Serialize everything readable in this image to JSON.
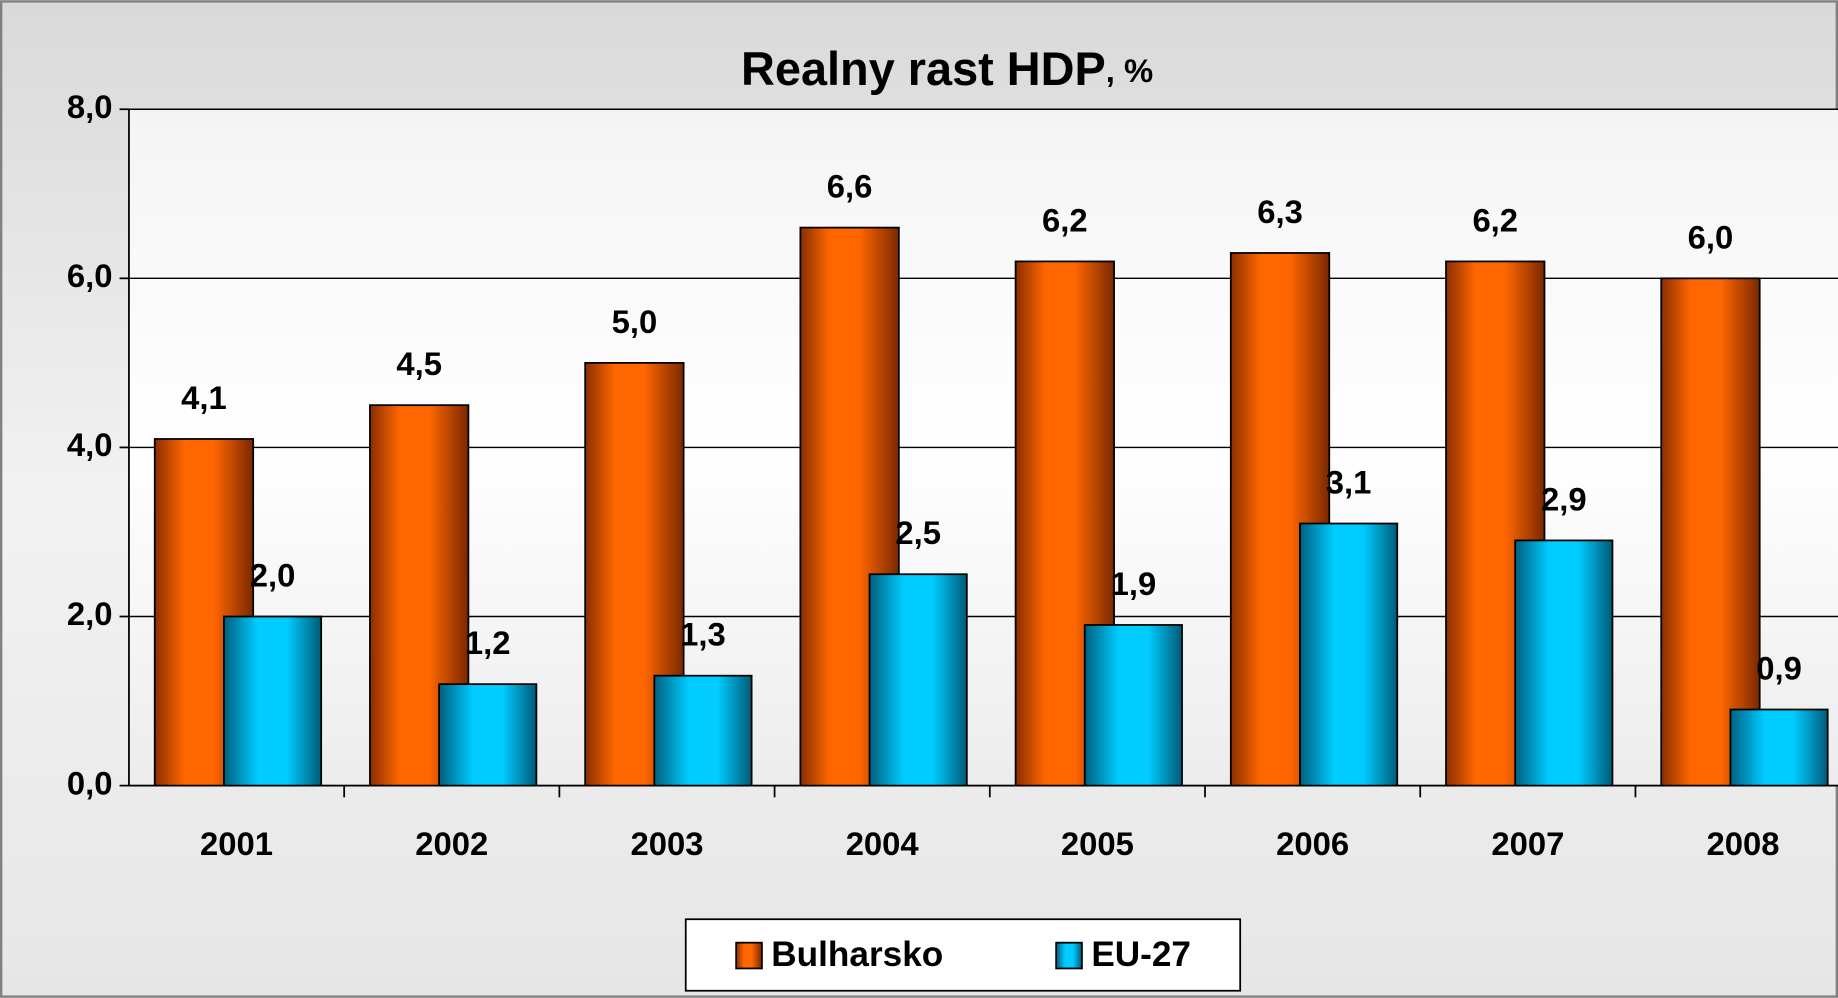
{
  "chart_data": {
    "type": "bar",
    "title": "Realny rast HDP",
    "title_unit": ", %",
    "categories": [
      "2001",
      "2002",
      "2003",
      "2004",
      "2005",
      "2006",
      "2007",
      "2008"
    ],
    "series": [
      {
        "name": "Bulharsko",
        "color": "#ff6600",
        "values": [
          4.1,
          4.5,
          5.0,
          6.6,
          6.2,
          6.3,
          6.2,
          6.0
        ],
        "value_labels": [
          "4,1",
          "4,5",
          "5,0",
          "6,6",
          "6,2",
          "6,3",
          "6,2",
          "6,0"
        ]
      },
      {
        "name": "EU-27",
        "color": "#00ccff",
        "values": [
          2.0,
          1.2,
          1.3,
          2.5,
          1.9,
          3.1,
          2.9,
          0.9
        ],
        "value_labels": [
          "2,0",
          "1,2",
          "1,3",
          "2,5",
          "1,9",
          "3,1",
          "2,9",
          "0,9"
        ]
      }
    ],
    "ylim": [
      0,
      8
    ],
    "yticks": [
      {
        "value": 0,
        "label": "0,0"
      },
      {
        "value": 2,
        "label": "2,0"
      },
      {
        "value": 4,
        "label": "4,0"
      },
      {
        "value": 6,
        "label": "6,0"
      },
      {
        "value": 8,
        "label": "8,0"
      }
    ],
    "grid": true,
    "legend": "bottom"
  }
}
